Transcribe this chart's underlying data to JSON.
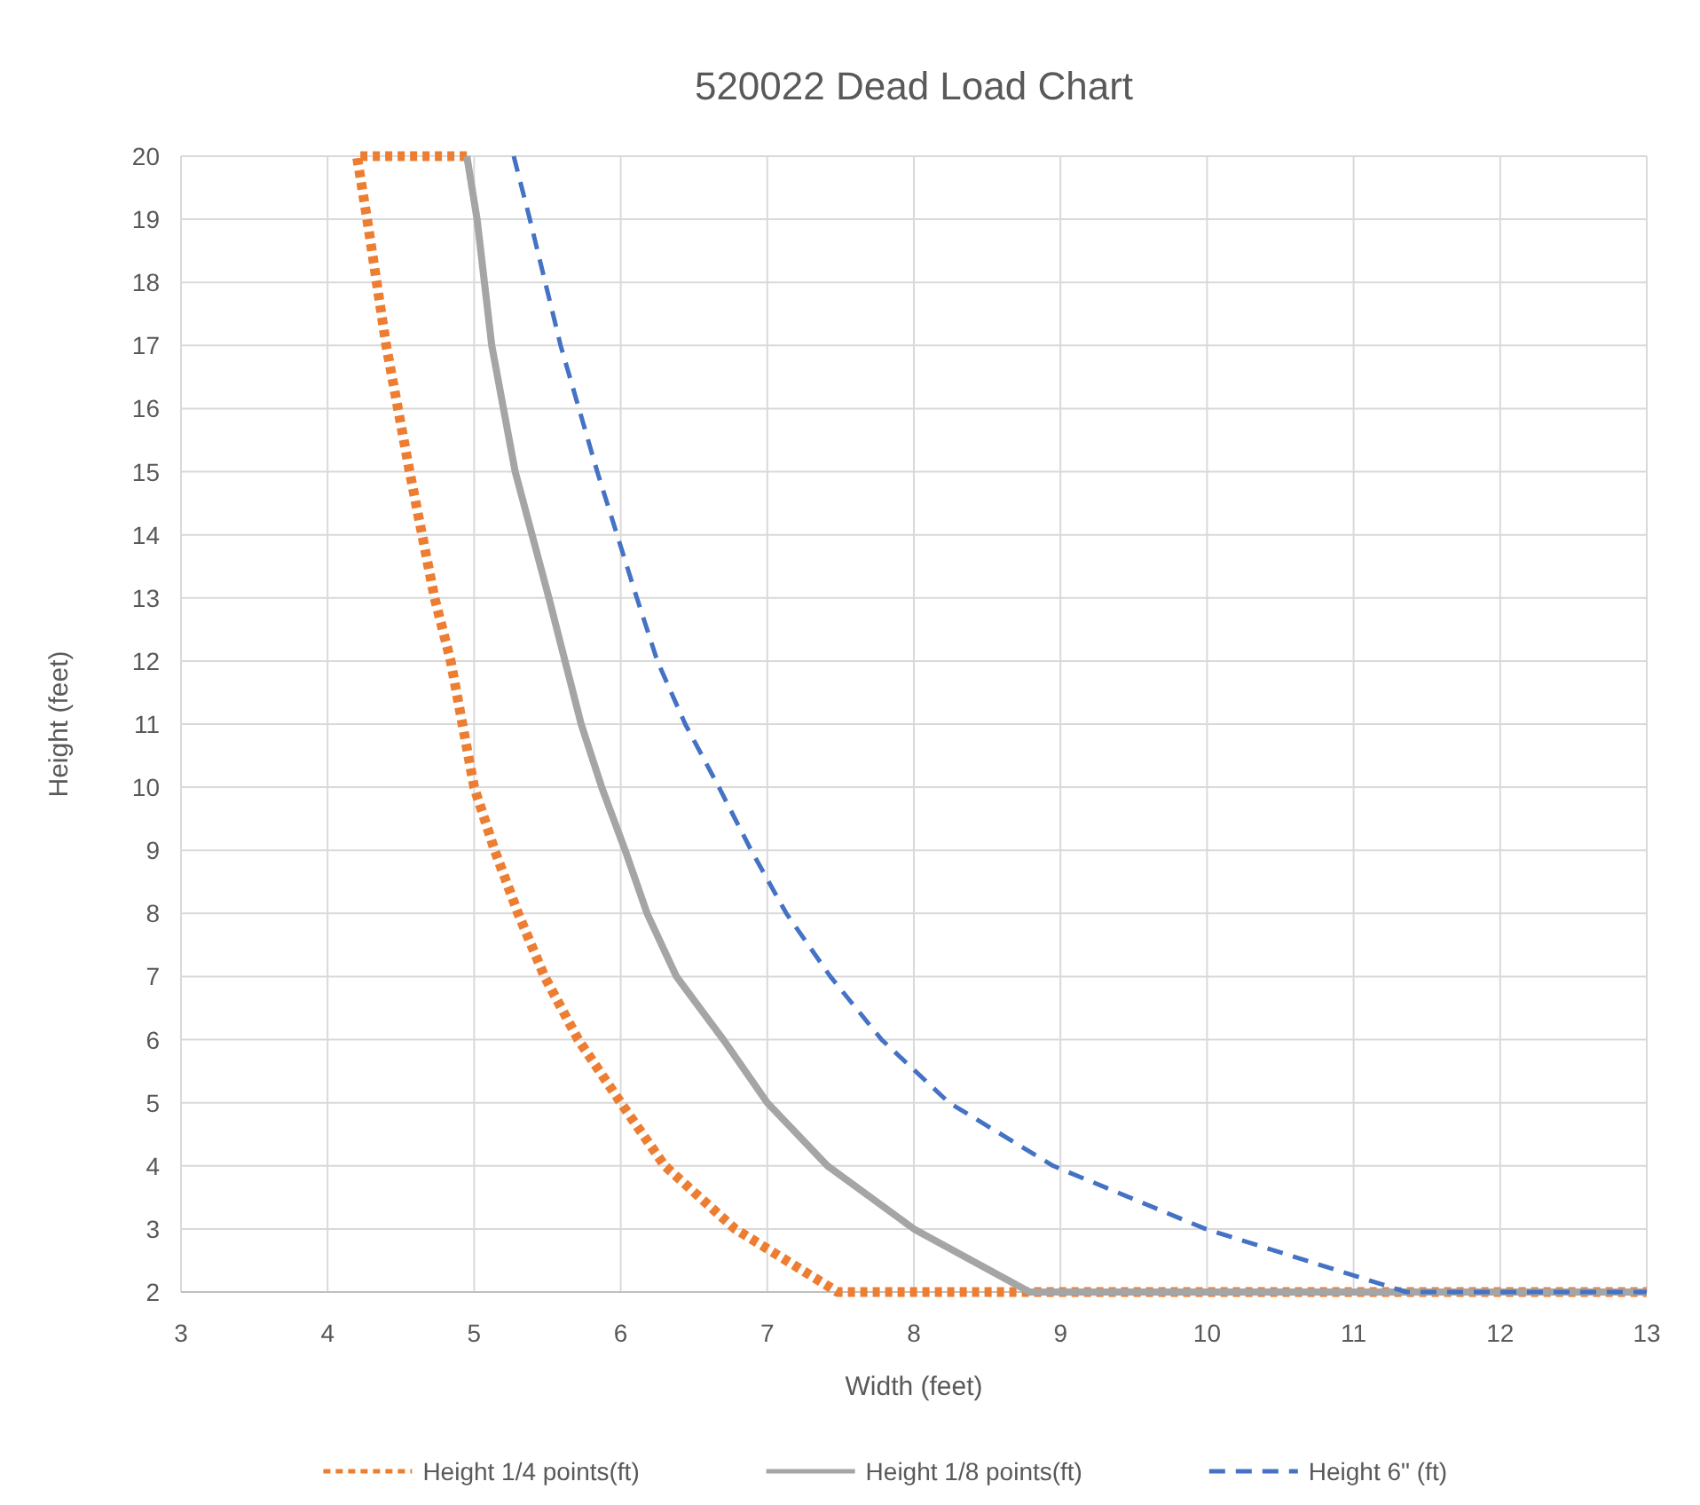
{
  "chart_data": {
    "type": "line",
    "title": "520022 Dead Load Chart",
    "xlabel": "Width (feet)",
    "ylabel": "Height (feet)",
    "xlim": [
      3,
      13
    ],
    "ylim": [
      2,
      20
    ],
    "xticks": [
      3,
      4,
      5,
      6,
      7,
      8,
      9,
      10,
      11,
      12,
      13
    ],
    "yticks": [
      2,
      3,
      4,
      5,
      6,
      7,
      8,
      9,
      10,
      11,
      12,
      13,
      14,
      15,
      16,
      17,
      18,
      19,
      20
    ],
    "grid": true,
    "legend": "bottom",
    "marker": "none",
    "series": [
      {
        "name": "Height 1/4 points(ft)",
        "color": "#ed7d31",
        "line_style": "dotted",
        "x": [
          4.95,
          4.2,
          4.27,
          4.4,
          4.56,
          4.73,
          4.84,
          4.92,
          5.0,
          5.14,
          5.3,
          5.48,
          5.71,
          6.0,
          6.3,
          6.78,
          7.48,
          13
        ],
        "values": [
          20,
          20,
          19,
          17,
          15,
          13,
          12,
          11,
          10,
          9,
          8,
          7,
          6,
          5,
          4,
          3,
          2,
          2
        ]
      },
      {
        "name": "Height 1/8 points(ft)",
        "color": "#a5a5a5",
        "line_style": "solid",
        "x": [
          4.95,
          5.02,
          5.12,
          5.28,
          5.51,
          5.62,
          5.73,
          5.87,
          6.03,
          6.18,
          6.38,
          6.7,
          7.0,
          7.41,
          8.0,
          8.79,
          13
        ],
        "values": [
          20,
          19,
          17,
          15,
          13,
          12,
          11,
          10,
          9,
          8,
          7,
          6,
          5,
          4,
          3,
          2,
          2
        ]
      },
      {
        "name": "Height 6\" (ft)",
        "color": "#4472c4",
        "line_style": "dashed",
        "x": [
          5.27,
          5.38,
          5.59,
          5.84,
          6.11,
          6.25,
          6.44,
          6.67,
          6.89,
          7.13,
          7.43,
          7.78,
          8.24,
          8.95,
          9.99,
          11.36,
          13
        ],
        "values": [
          20,
          19,
          17,
          15,
          13,
          12,
          11,
          10,
          9,
          8,
          7,
          6,
          5,
          4,
          3,
          2,
          2
        ]
      }
    ]
  }
}
